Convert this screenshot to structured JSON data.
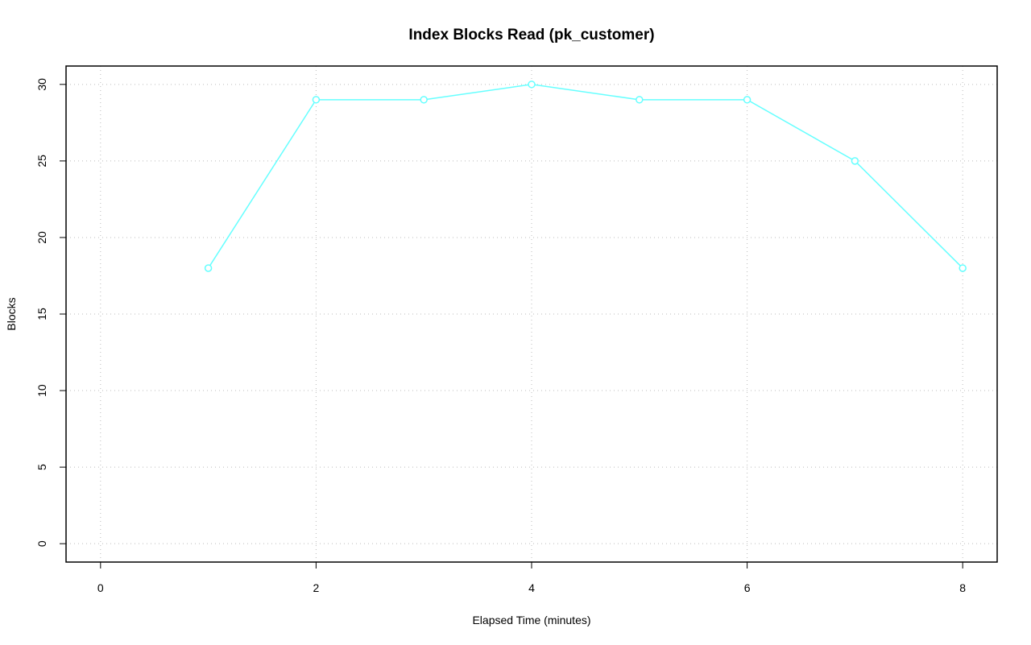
{
  "chart_data": {
    "type": "line",
    "title": "Index Blocks Read (pk_customer)",
    "x_label": "Elapsed Time (minutes)",
    "y_label": "Blocks",
    "x": [
      1,
      2,
      3,
      4,
      5,
      6,
      7,
      8
    ],
    "series": [
      {
        "name": "pk_customer",
        "color": "#66ffff",
        "values": [
          18,
          29,
          29,
          30,
          29,
          29,
          25,
          18
        ]
      }
    ],
    "xlim": [
      -0.32,
      8.32
    ],
    "xticks": [
      0,
      2,
      4,
      6,
      8
    ],
    "ylim": [
      -1.2,
      31.2
    ],
    "yticks": [
      0,
      5,
      10,
      15,
      20,
      25,
      30
    ],
    "grid": true
  }
}
